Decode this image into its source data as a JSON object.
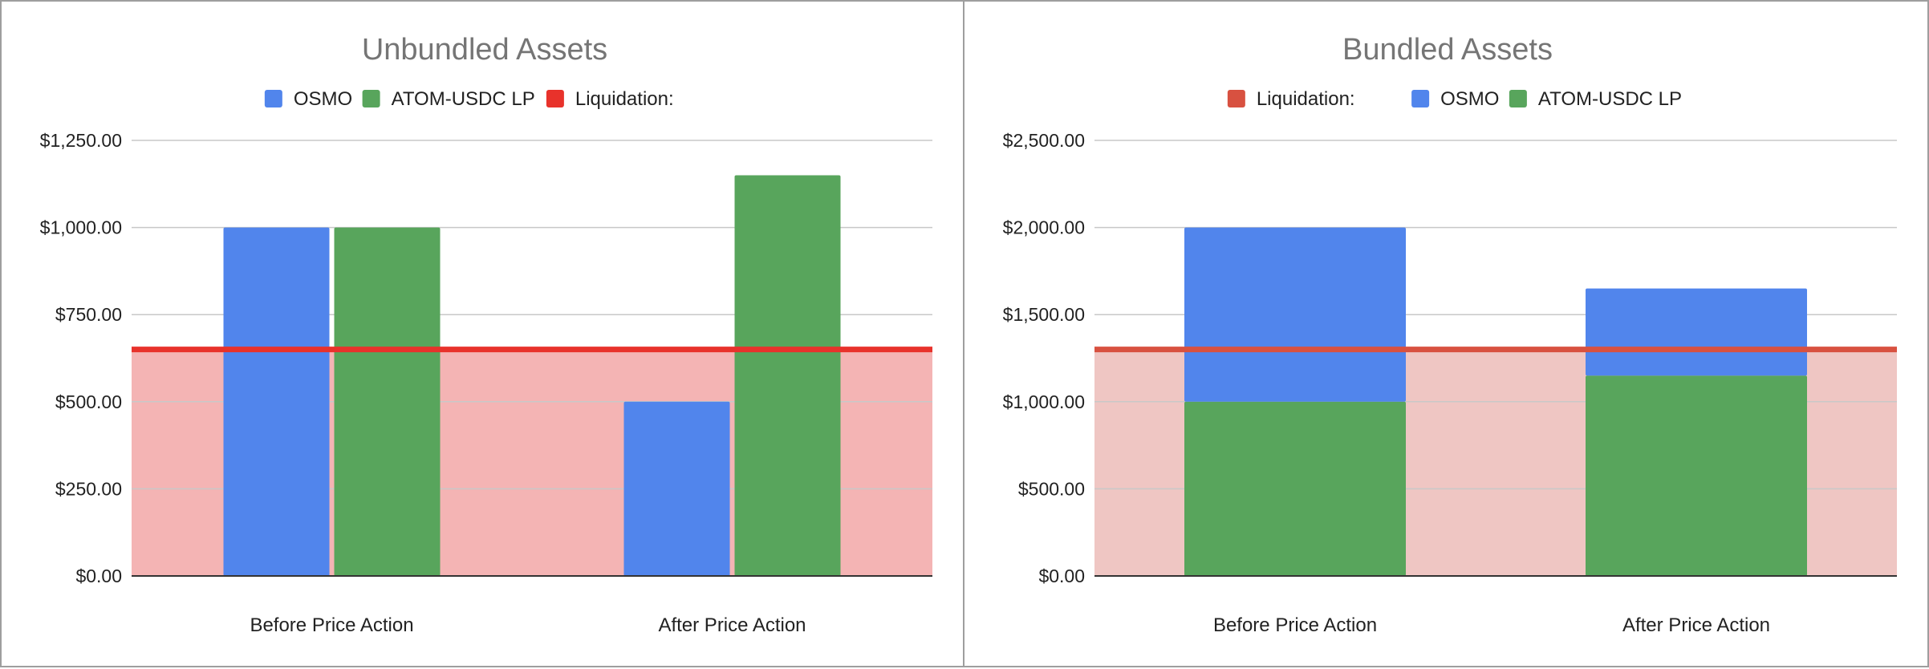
{
  "colors": {
    "osmo": "#5185ec",
    "atom_lp": "#58a55c",
    "liq_left": "#e8322b",
    "liq_right": "#d85140",
    "band_left": "#f4b4b4",
    "band_right": "#efc6c3",
    "grid": "#c8c8c8",
    "baseline": "#333333",
    "title": "#757575",
    "text": "#222222"
  },
  "chart_data": [
    {
      "type": "bar",
      "title": "Unbundled Assets",
      "legend": {
        "position": "top",
        "items": [
          {
            "label": "OSMO",
            "color": "#5185ec"
          },
          {
            "label": "ATOM-USDC LP",
            "color": "#58a55c"
          },
          {
            "label": "Liquidation:",
            "color": "#e8322b"
          }
        ]
      },
      "categories": [
        "Before Price Action",
        "After Price Action"
      ],
      "series": [
        {
          "name": "OSMO",
          "values": [
            1000,
            500
          ]
        },
        {
          "name": "ATOM-USDC LP",
          "values": [
            1000,
            1150
          ]
        }
      ],
      "liquidation": {
        "name": "Liquidation:",
        "value": 650
      },
      "stacked": false,
      "ylim": [
        0,
        1250
      ],
      "yticks": [
        0,
        250,
        500,
        750,
        1000,
        1250
      ],
      "ytick_labels": [
        "$0.00",
        "$250.00",
        "$500.00",
        "$750.00",
        "$1,000.00",
        "$1,250.00"
      ],
      "grid": true
    },
    {
      "type": "bar",
      "title": "Bundled Assets",
      "legend": {
        "position": "top",
        "items": [
          {
            "label": "Liquidation:",
            "color": "#d85140"
          },
          {
            "label": "OSMO",
            "color": "#5185ec"
          },
          {
            "label": "ATOM-USDC LP",
            "color": "#58a55c"
          }
        ]
      },
      "categories": [
        "Before Price Action",
        "After Price Action"
      ],
      "series": [
        {
          "name": "ATOM-USDC LP",
          "values": [
            1000,
            1150
          ]
        },
        {
          "name": "OSMO",
          "values": [
            1000,
            500
          ]
        }
      ],
      "liquidation": {
        "name": "Liquidation:",
        "value": 1300
      },
      "stacked": true,
      "ylim": [
        0,
        2500
      ],
      "yticks": [
        0,
        500,
        1000,
        1500,
        2000,
        2500
      ],
      "ytick_labels": [
        "$0.00",
        "$500.00",
        "$1,000.00",
        "$1,500.00",
        "$2,000.00",
        "$2,500.00"
      ],
      "grid": true
    }
  ]
}
